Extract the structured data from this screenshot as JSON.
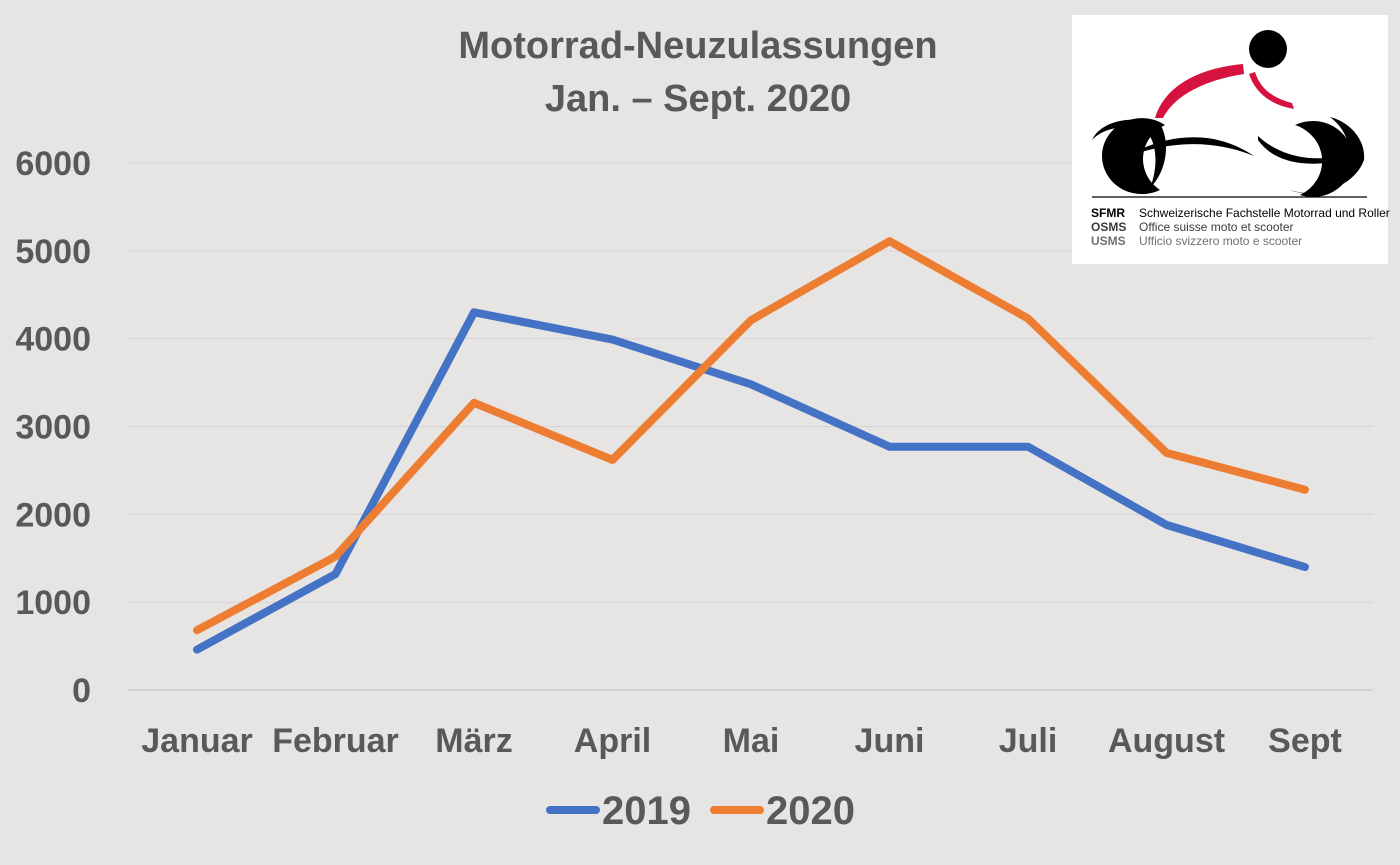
{
  "chart_data": {
    "type": "line",
    "title": [
      "Motorrad-Neuzulassungen",
      "Jan. – Sept. 2020"
    ],
    "categories": [
      "Januar",
      "Februar",
      "März",
      "April",
      "Mai",
      "Juni",
      "Juli",
      "August",
      "Sept"
    ],
    "series": [
      {
        "name": "2019",
        "color": "#4472c4",
        "values": [
          460,
          1320,
          4300,
          3990,
          3480,
          2770,
          2770,
          1880,
          1400
        ]
      },
      {
        "name": "2020",
        "color": "#ed7d31",
        "values": [
          680,
          1520,
          3270,
          2620,
          4210,
          5110,
          4230,
          2700,
          2280
        ]
      }
    ],
    "ylim": [
      0,
      6000
    ],
    "yticks": [
      0,
      1000,
      2000,
      3000,
      4000,
      5000,
      6000
    ],
    "grid": true,
    "legend_position": "bottom"
  },
  "logo": {
    "rows": [
      {
        "abbr": "SFMR",
        "desc": "Schweizerische Fachstelle Motorrad und Roller"
      },
      {
        "abbr": "OSMS",
        "desc": "Office suisse moto et scooter"
      },
      {
        "abbr": "USMS",
        "desc": "Ufficio svizzero moto e scooter"
      }
    ],
    "colors": {
      "red": "#d6123f",
      "black": "#000000"
    }
  }
}
